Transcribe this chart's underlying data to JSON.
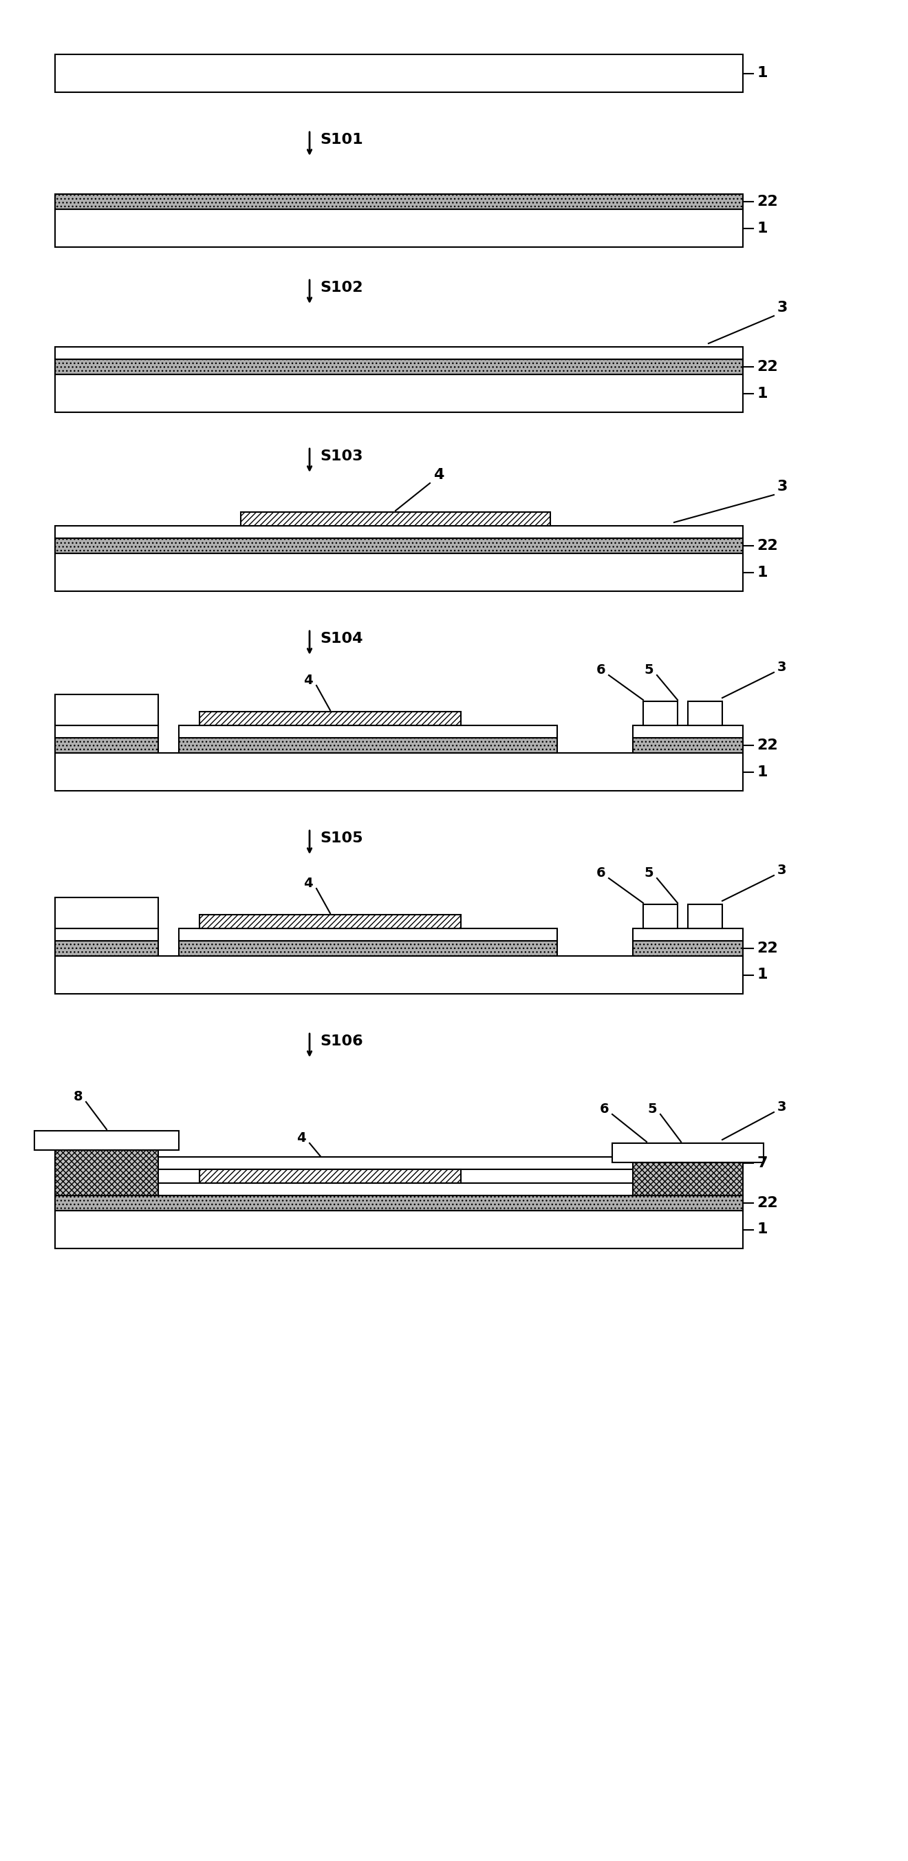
{
  "fig_width": 13.2,
  "fig_height": 27.04,
  "bg_color": "#ffffff",
  "steps": [
    "S101",
    "S102",
    "S103",
    "S104",
    "S105",
    "S106"
  ],
  "substrate_color": "#ffffff",
  "substrate_edge": "#000000",
  "layer22_color": "#d0d0d0",
  "layer22_hatch": "...",
  "layer3_color": "#ffffff",
  "layer4_hatch": "////",
  "layer4_color": "#ffffff",
  "layer56_color": "#ffffff",
  "via_hatch": "xxxx",
  "via_color": "#d0d0d0",
  "line_color": "#000000",
  "text_color": "#000000",
  "arrow_color": "#000000"
}
